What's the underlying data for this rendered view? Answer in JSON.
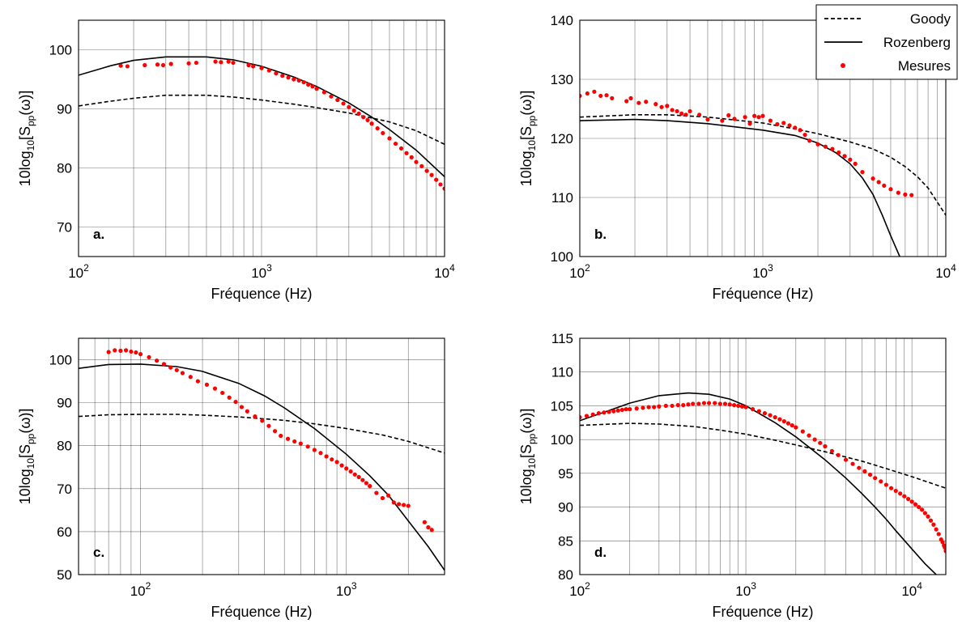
{
  "legend": {
    "placement": "top-right",
    "entries": [
      {
        "label": "Goody",
        "style": "dashed",
        "color": "#000000"
      },
      {
        "label": "Rozenberg",
        "style": "solid",
        "color": "#000000"
      },
      {
        "label": "Mesures",
        "style": "markers",
        "color": "#ff0000"
      }
    ]
  },
  "chart_data": [
    {
      "panel": "a.",
      "type": "line",
      "xlabel": "Fréquence (Hz)",
      "ylabel": "10log10[Spp(ω)]",
      "xscale": "log",
      "xlim": [
        100,
        10000
      ],
      "ylim": [
        65,
        105
      ],
      "xticks": [
        100,
        1000,
        10000
      ],
      "yticks": [
        70,
        80,
        90,
        100
      ],
      "grid": true,
      "series": [
        {
          "name": "Goody",
          "style": "dashed",
          "x": [
            100,
            150,
            200,
            300,
            500,
            700,
            1000,
            1500,
            2000,
            3000,
            5000,
            7000,
            10000
          ],
          "y": [
            90.5,
            91.3,
            91.8,
            92.3,
            92.3,
            92.0,
            91.5,
            90.8,
            90.2,
            89.3,
            87.8,
            86.3,
            84.0
          ]
        },
        {
          "name": "Rozenberg",
          "style": "solid",
          "x": [
            100,
            150,
            200,
            300,
            500,
            700,
            1000,
            1500,
            2000,
            3000,
            4000,
            5000,
            7000,
            10000
          ],
          "y": [
            95.7,
            97.3,
            98.2,
            98.8,
            98.8,
            98.3,
            97.2,
            95.4,
            93.8,
            91.0,
            88.6,
            86.5,
            83.0,
            78.5
          ]
        },
        {
          "name": "Mesures",
          "style": "markers",
          "x": [
            170,
            185,
            230,
            270,
            290,
            320,
            400,
            440,
            560,
            600,
            660,
            700,
            850,
            900,
            1000,
            1100,
            1200,
            1300,
            1400,
            1500,
            1600,
            1700,
            1800,
            1900,
            2000,
            2200,
            2400,
            2600,
            2800,
            3000,
            3200,
            3400,
            3600,
            3800,
            4000,
            4300,
            4600,
            5000,
            5400,
            5800,
            6200,
            6600,
            7000,
            7500,
            8000,
            8500,
            9000,
            9500,
            10000
          ],
          "y": [
            97.3,
            97.2,
            97.4,
            97.5,
            97.4,
            97.6,
            97.7,
            97.8,
            98.0,
            97.9,
            98.0,
            97.8,
            97.4,
            97.2,
            96.9,
            96.5,
            96.0,
            95.6,
            95.3,
            95.0,
            94.8,
            94.5,
            94.1,
            93.8,
            93.4,
            92.8,
            92.1,
            91.5,
            90.9,
            90.3,
            89.7,
            89.2,
            88.6,
            88.1,
            87.5,
            86.7,
            85.9,
            85.0,
            84.1,
            83.3,
            82.5,
            81.8,
            81.0,
            80.3,
            79.5,
            78.8,
            78.0,
            77.2,
            76.5
          ]
        }
      ]
    },
    {
      "panel": "b.",
      "type": "line",
      "xlabel": "Fréquence (Hz)",
      "ylabel": "10log10[Spp(ω)]",
      "xscale": "log",
      "xlim": [
        100,
        10000
      ],
      "ylim": [
        100,
        140
      ],
      "xticks": [
        100,
        1000,
        10000
      ],
      "yticks": [
        100,
        110,
        120,
        130,
        140
      ],
      "grid": true,
      "series": [
        {
          "name": "Goody",
          "style": "dashed",
          "x": [
            100,
            200,
            300,
            500,
            1000,
            1500,
            2000,
            3000,
            4000,
            5000,
            6000,
            7000,
            8000,
            10000
          ],
          "y": [
            123.6,
            124.0,
            124.0,
            123.6,
            122.6,
            121.6,
            120.8,
            119.4,
            118.2,
            116.8,
            115.2,
            113.5,
            111.6,
            107.0
          ]
        },
        {
          "name": "Rozenberg",
          "style": "solid",
          "x": [
            100,
            200,
            300,
            500,
            1000,
            1500,
            2000,
            2500,
            3000,
            3500,
            4000,
            4500,
            5000,
            5600
          ],
          "y": [
            123.0,
            123.2,
            123.0,
            122.5,
            121.4,
            120.5,
            119.2,
            117.6,
            115.7,
            113.3,
            110.5,
            107.0,
            103.5,
            100.0
          ]
        },
        {
          "name": "Mesures",
          "style": "markers",
          "x": [
            100,
            110,
            120,
            130,
            140,
            150,
            180,
            190,
            210,
            230,
            260,
            280,
            300,
            320,
            340,
            360,
            380,
            400,
            450,
            500,
            600,
            650,
            700,
            800,
            850,
            900,
            950,
            1000,
            1100,
            1200,
            1300,
            1400,
            1500,
            1600,
            1700,
            1800,
            2000,
            2200,
            2400,
            2600,
            2800,
            3000,
            3200,
            3500,
            4000,
            4300,
            4600,
            5000,
            5500,
            6000,
            6500
          ],
          "y": [
            127.2,
            127.6,
            127.9,
            127.2,
            127.3,
            126.8,
            126.3,
            126.8,
            126.0,
            126.2,
            125.8,
            125.3,
            125.5,
            124.8,
            124.6,
            124.2,
            124.0,
            124.6,
            124.0,
            123.2,
            123.0,
            123.9,
            123.3,
            123.6,
            122.5,
            123.8,
            123.6,
            123.8,
            123.0,
            122.4,
            122.6,
            122.2,
            121.8,
            121.4,
            120.6,
            119.6,
            119.0,
            118.6,
            118.2,
            117.6,
            117.0,
            116.4,
            115.7,
            114.3,
            113.2,
            112.6,
            112.0,
            111.4,
            110.8,
            110.5,
            110.4
          ]
        }
      ]
    },
    {
      "panel": "c.",
      "type": "line",
      "xlabel": "Fréquence (Hz)",
      "ylabel": "10log10[Spp(ω)]",
      "xscale": "log",
      "xlim": [
        50,
        3000
      ],
      "ylim": [
        50,
        105
      ],
      "xticks": [
        100,
        1000
      ],
      "yticks": [
        50,
        60,
        70,
        80,
        90,
        100
      ],
      "grid": true,
      "series": [
        {
          "name": "Goody",
          "style": "dashed",
          "x": [
            50,
            70,
            100,
            150,
            200,
            300,
            500,
            700,
            1000,
            1500,
            2000,
            3000
          ],
          "y": [
            86.8,
            87.2,
            87.3,
            87.3,
            87.1,
            86.7,
            85.9,
            85.1,
            84.0,
            82.5,
            81.0,
            78.3
          ]
        },
        {
          "name": "Rozenberg",
          "style": "solid",
          "x": [
            50,
            70,
            100,
            150,
            200,
            300,
            400,
            500,
            700,
            1000,
            1300,
            1600,
            2000,
            2500,
            3000
          ],
          "y": [
            98.0,
            98.9,
            99.0,
            98.4,
            97.3,
            94.5,
            91.6,
            88.8,
            84.0,
            78.0,
            73.0,
            68.5,
            62.5,
            56.5,
            51.0
          ]
        },
        {
          "name": "Mesures",
          "style": "markers",
          "x": [
            70,
            75,
            80,
            85,
            90,
            95,
            100,
            110,
            120,
            130,
            140,
            150,
            160,
            175,
            190,
            210,
            230,
            250,
            270,
            290,
            310,
            330,
            360,
            390,
            420,
            450,
            480,
            520,
            560,
            600,
            650,
            700,
            750,
            800,
            850,
            900,
            950,
            1000,
            1050,
            1100,
            1150,
            1200,
            1250,
            1300,
            1400,
            1500,
            1600,
            1700,
            1800,
            1900,
            2000,
            2400,
            2500,
            2600
          ],
          "y": [
            101.8,
            102.2,
            102.1,
            102.2,
            101.9,
            101.7,
            101.3,
            100.6,
            99.8,
            99.0,
            98.2,
            97.6,
            96.9,
            96.0,
            95.0,
            94.2,
            93.3,
            92.3,
            91.2,
            90.2,
            89.0,
            88.0,
            86.8,
            85.8,
            84.6,
            83.4,
            82.3,
            81.6,
            81.0,
            80.5,
            79.8,
            79.0,
            78.3,
            77.5,
            76.8,
            76.2,
            75.4,
            74.7,
            74.0,
            73.3,
            72.7,
            72.0,
            71.3,
            70.6,
            69.0,
            67.8,
            68.4,
            66.8,
            66.4,
            66.2,
            66.0,
            62.2,
            61.0,
            60.4
          ]
        }
      ]
    },
    {
      "panel": "d.",
      "type": "line",
      "xlabel": "Fréquence (Hz)",
      "ylabel": "10log10[Spp(ω)]",
      "xscale": "log",
      "xlim": [
        100,
        16000
      ],
      "ylim": [
        80,
        115
      ],
      "xticks": [
        100,
        1000,
        10000
      ],
      "yticks": [
        80,
        85,
        90,
        95,
        100,
        105,
        110,
        115
      ],
      "grid": true,
      "series": [
        {
          "name": "Goody",
          "style": "dashed",
          "x": [
            100,
            200,
            300,
            500,
            700,
            1000,
            1500,
            2000,
            3000,
            5000,
            7000,
            10000,
            16000
          ],
          "y": [
            102.1,
            102.4,
            102.3,
            101.9,
            101.4,
            100.8,
            99.9,
            99.2,
            98.2,
            96.8,
            95.7,
            94.5,
            92.8
          ]
        },
        {
          "name": "Rozenberg",
          "style": "solid",
          "x": [
            100,
            150,
            200,
            300,
            450,
            600,
            800,
            1000,
            1500,
            2000,
            3000,
            4000,
            5000,
            6000,
            7000,
            8000,
            10000,
            12000,
            14000
          ],
          "y": [
            102.8,
            104.3,
            105.4,
            106.5,
            106.9,
            106.7,
            106.0,
            105.0,
            102.5,
            100.4,
            97.0,
            94.3,
            92.0,
            90.0,
            88.2,
            86.5,
            83.8,
            81.6,
            80.0
          ]
        },
        {
          "name": "Mesures",
          "style": "markers",
          "x": [
            100,
            110,
            120,
            130,
            140,
            150,
            160,
            170,
            180,
            190,
            200,
            220,
            240,
            260,
            280,
            300,
            330,
            360,
            390,
            420,
            450,
            480,
            520,
            560,
            600,
            650,
            700,
            750,
            800,
            850,
            900,
            950,
            1000,
            1100,
            1200,
            1300,
            1400,
            1500,
            1600,
            1700,
            1800,
            1900,
            2000,
            2200,
            2400,
            2600,
            2800,
            3000,
            3300,
            3600,
            4000,
            4400,
            4800,
            5200,
            5600,
            6000,
            6500,
            7000,
            7500,
            8000,
            8500,
            9000,
            9500,
            10000,
            10500,
            11000,
            11500,
            12000,
            12500,
            13000,
            13500,
            14000,
            14500,
            15000,
            15300,
            15600,
            15800,
            16000
          ],
          "y": [
            103.3,
            103.5,
            103.7,
            103.9,
            104.0,
            104.1,
            104.2,
            104.3,
            104.4,
            104.5,
            104.5,
            104.6,
            104.7,
            104.8,
            104.8,
            104.9,
            105.0,
            105.0,
            105.1,
            105.1,
            105.2,
            105.3,
            105.3,
            105.4,
            105.4,
            105.4,
            105.3,
            105.3,
            105.2,
            105.1,
            105.0,
            104.9,
            104.8,
            104.5,
            104.2,
            103.9,
            103.6,
            103.3,
            103.0,
            102.7,
            102.4,
            102.1,
            101.8,
            101.2,
            100.6,
            100.0,
            99.5,
            99.0,
            98.3,
            97.7,
            97.0,
            96.4,
            95.8,
            95.3,
            94.8,
            94.3,
            93.8,
            93.3,
            92.8,
            92.4,
            92.0,
            91.6,
            91.2,
            90.8,
            90.4,
            90.0,
            89.6,
            89.1,
            88.6,
            88.0,
            87.4,
            86.7,
            86.0,
            85.2,
            84.8,
            84.3,
            84.0,
            83.5
          ]
        }
      ]
    }
  ]
}
